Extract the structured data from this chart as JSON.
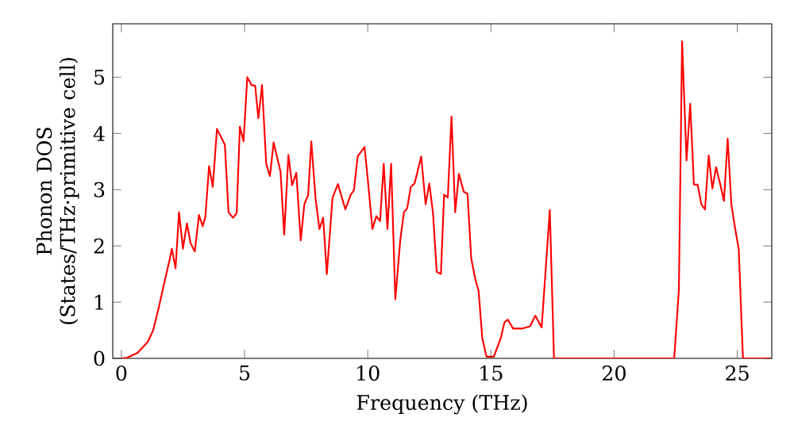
{
  "chart_data": {
    "type": "line",
    "xlabel": "Frequency (THz)",
    "ylabel": "Phonon DOS (States/THz·primitive cell)",
    "xlim": [
      -0.35,
      26.4
    ],
    "ylim": [
      0,
      5.95
    ],
    "xticks": [
      0,
      5,
      10,
      15,
      20,
      25
    ],
    "yticks": [
      0,
      1,
      2,
      3,
      4,
      5
    ],
    "grid": false,
    "marker": "none",
    "line_style": "solid",
    "series": [
      {
        "color": "#ff0000",
        "x": [
          0,
          0.23,
          0.66,
          1.08,
          1.29,
          1.5,
          1.72,
          1.94,
          2.05,
          2.2,
          2.34,
          2.5,
          2.66,
          2.81,
          2.98,
          3.15,
          3.3,
          3.41,
          3.56,
          3.71,
          3.88,
          4.2,
          4.35,
          4.53,
          4.68,
          4.81,
          4.96,
          5.11,
          5.28,
          5.43,
          5.56,
          5.71,
          5.88,
          6.03,
          6.18,
          6.31,
          6.46,
          6.61,
          6.78,
          6.93,
          7.1,
          7.28,
          7.43,
          7.58,
          7.71,
          7.88,
          8.04,
          8.19,
          8.34,
          8.57,
          8.79,
          9.09,
          9.31,
          9.44,
          9.59,
          9.87,
          10.02,
          10.19,
          10.35,
          10.5,
          10.65,
          10.8,
          10.95,
          11.12,
          11.32,
          11.47,
          11.6,
          11.75,
          11.9,
          12.17,
          12.35,
          12.5,
          12.65,
          12.8,
          12.97,
          13.1,
          13.25,
          13.4,
          13.55,
          13.7,
          13.9,
          14.05,
          14.2,
          14.37,
          14.5,
          14.65,
          14.82,
          15.12,
          15.4,
          15.55,
          15.68,
          15.9,
          16.26,
          16.59,
          16.8,
          17.06,
          17.39,
          17.56,
          22.44,
          22.63,
          22.76,
          22.94,
          23.09,
          23.24,
          23.39,
          23.54,
          23.69,
          23.84,
          23.99,
          24.14,
          24.31,
          24.46,
          24.61,
          24.76,
          24.91,
          25.06,
          25.23,
          26.35
        ],
        "values": [
          0,
          0.01,
          0.1,
          0.3,
          0.5,
          0.87,
          1.3,
          1.72,
          1.95,
          1.6,
          2.6,
          1.95,
          2.4,
          2.05,
          1.9,
          2.55,
          2.35,
          2.52,
          3.42,
          3.05,
          4.08,
          3.8,
          2.6,
          2.5,
          2.58,
          4.12,
          3.86,
          5.0,
          4.86,
          4.85,
          4.27,
          4.86,
          3.46,
          3.24,
          3.84,
          3.6,
          3.32,
          2.2,
          3.62,
          3.08,
          3.3,
          2.1,
          2.75,
          2.9,
          3.86,
          2.85,
          2.3,
          2.5,
          1.5,
          2.85,
          3.1,
          2.65,
          2.91,
          2.99,
          3.59,
          3.76,
          3.1,
          2.3,
          2.53,
          2.44,
          3.46,
          2.3,
          3.46,
          1.05,
          2.1,
          2.6,
          2.67,
          3.05,
          3.11,
          3.59,
          2.74,
          3.11,
          2.58,
          1.54,
          1.5,
          2.91,
          2.86,
          4.3,
          2.6,
          3.28,
          2.96,
          2.93,
          1.78,
          1.4,
          1.2,
          0.36,
          0.03,
          0.03,
          0.36,
          0.64,
          0.69,
          0.53,
          0.53,
          0.57,
          0.76,
          0.55,
          2.64,
          0,
          0,
          1.22,
          5.64,
          3.52,
          4.53,
          3.09,
          3.09,
          2.74,
          2.65,
          3.61,
          3.02,
          3.4,
          3.09,
          2.8,
          3.91,
          2.74,
          2.32,
          1.94,
          0,
          0
        ]
      }
    ]
  }
}
